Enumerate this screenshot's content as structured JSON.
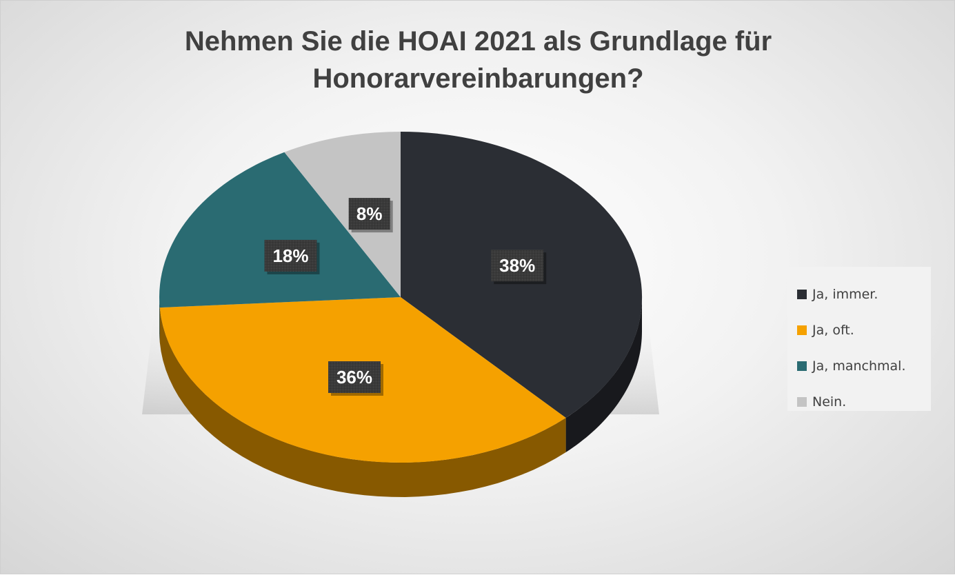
{
  "chart_data": {
    "type": "pie",
    "title": "Nehmen Sie die HOAI 2021 als Grundlage für Honorarvereinbarungen?",
    "title_lines": [
      "Nehmen Sie die HOAI 2021 als Grundlage für",
      "Honorarvereinbarungen?"
    ],
    "slices": [
      {
        "label": "Ja, immer.",
        "value": 38,
        "data_label": "38%",
        "color": "#2b2e34"
      },
      {
        "label": "Ja, oft.",
        "value": 36,
        "data_label": "36%",
        "color": "#f5a100"
      },
      {
        "label": "Ja, manchmal.",
        "value": 18,
        "data_label": "18%",
        "color": "#2a6b72"
      },
      {
        "label": "Nein.",
        "value": 8,
        "data_label": "8%",
        "color": "#c4c4c4"
      }
    ],
    "style": "3d",
    "legend_position": "right"
  }
}
